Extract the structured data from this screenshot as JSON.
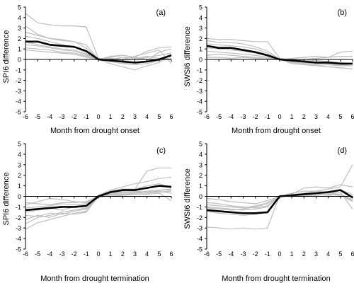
{
  "chart_data": [
    {
      "type": "line",
      "panel_label": "(a)",
      "ylabel": "SPI6 difference",
      "xlabel": "Month from drought onset",
      "x": [
        -6,
        -5,
        -4,
        -3,
        -2,
        -1,
        0,
        1,
        2,
        3,
        4,
        5,
        6
      ],
      "xlim": [
        -6,
        6
      ],
      "ylim": [
        -5,
        5
      ],
      "yticks": [
        -5,
        -4,
        -3,
        -2,
        -1,
        0,
        1,
        2,
        3,
        4,
        5
      ],
      "grid": false,
      "mean_series": [
        1.7,
        1.7,
        1.4,
        1.3,
        1.2,
        0.8,
        0.0,
        -0.1,
        -0.2,
        -0.3,
        -0.2,
        0.0,
        0.4
      ],
      "series": [
        {
          "values": [
            4.4,
            3.5,
            3.3,
            3.2,
            3.2,
            3.1,
            0.1,
            0.0,
            0.2,
            0.1,
            0.3,
            0.1,
            0.3
          ]
        },
        {
          "values": [
            3.2,
            2.4,
            2.0,
            1.9,
            1.7,
            1.4,
            0.0,
            -0.4,
            -0.7,
            -1.0,
            -0.6,
            -0.3,
            0.5
          ]
        },
        {
          "values": [
            2.6,
            2.3,
            2.0,
            1.8,
            1.7,
            1.1,
            0.0,
            -0.2,
            -0.4,
            -0.5,
            -0.1,
            0.7,
            1.0
          ]
        },
        {
          "values": [
            2.2,
            2.0,
            1.7,
            1.4,
            1.2,
            0.6,
            0.0,
            0.2,
            0.4,
            0.2,
            0.8,
            1.1,
            1.2
          ]
        },
        {
          "values": [
            1.7,
            1.4,
            1.2,
            1.0,
            0.9,
            0.5,
            0.0,
            0.3,
            0.4,
            0.2,
            0.0,
            0.0,
            0.1
          ]
        },
        {
          "values": [
            1.4,
            1.3,
            1.1,
            0.9,
            0.8,
            0.4,
            0.0,
            -0.1,
            -0.3,
            -0.5,
            -0.4,
            -0.1,
            0.0
          ]
        },
        {
          "values": [
            1.1,
            1.0,
            0.9,
            0.7,
            0.6,
            0.3,
            0.0,
            0.1,
            0.0,
            0.3,
            0.6,
            0.9,
            -0.4
          ]
        },
        {
          "values": [
            0.9,
            0.8,
            0.7,
            0.6,
            0.5,
            0.2,
            0.0,
            0.0,
            -0.1,
            0.0,
            0.2,
            0.4,
            0.6
          ]
        }
      ]
    },
    {
      "type": "line",
      "panel_label": "(b)",
      "ylabel": "SWSI6 difference",
      "xlabel": "Month from drought onset",
      "x": [
        -6,
        -5,
        -4,
        -3,
        -2,
        -1,
        0,
        1,
        2,
        3,
        4,
        5,
        6
      ],
      "xlim": [
        -6,
        6
      ],
      "ylim": [
        -5,
        5
      ],
      "yticks": [
        -5,
        -4,
        -3,
        -2,
        -1,
        0,
        1,
        2,
        3,
        4,
        5
      ],
      "grid": false,
      "mean_series": [
        1.3,
        1.1,
        1.1,
        0.9,
        0.7,
        0.4,
        0.0,
        -0.1,
        -0.2,
        -0.3,
        -0.3,
        -0.4,
        -0.4
      ],
      "series": [
        {
          "values": [
            2.0,
            1.9,
            1.9,
            1.8,
            1.7,
            1.7,
            0.1,
            0.0,
            -0.1,
            -0.1,
            -0.2,
            -0.3,
            -0.4
          ]
        },
        {
          "values": [
            1.8,
            1.6,
            1.6,
            1.5,
            1.2,
            0.8,
            0.0,
            -0.2,
            -0.3,
            -0.4,
            -0.5,
            -0.6,
            -0.6
          ]
        },
        {
          "values": [
            1.5,
            1.4,
            1.3,
            1.2,
            1.0,
            0.6,
            0.0,
            -0.3,
            -0.4,
            -0.5,
            -0.7,
            -0.8,
            -0.9
          ]
        },
        {
          "values": [
            1.1,
            1.0,
            0.9,
            0.8,
            0.6,
            0.3,
            0.0,
            -0.4,
            -0.5,
            -0.6,
            -0.7,
            -0.8,
            -0.9
          ]
        },
        {
          "values": [
            0.8,
            0.7,
            0.6,
            0.5,
            0.4,
            0.2,
            0.0,
            0.1,
            0.2,
            0.3,
            0.2,
            0.3,
            0.3
          ]
        },
        {
          "values": [
            0.4,
            0.5,
            0.4,
            0.3,
            0.2,
            0.1,
            0.0,
            -0.1,
            0.0,
            0.1,
            0.2,
            0.7,
            0.8
          ]
        },
        {
          "values": [
            0.2,
            0.2,
            0.1,
            0.2,
            0.1,
            0.0,
            0.0,
            -0.2,
            -0.3,
            -0.4,
            -0.4,
            -0.5,
            -0.6
          ]
        }
      ]
    },
    {
      "type": "line",
      "panel_label": "(c)",
      "ylabel": "SPI6 difference",
      "xlabel": "Month from drought termination",
      "x": [
        -6,
        -5,
        -4,
        -3,
        -2,
        -1,
        0,
        1,
        2,
        3,
        4,
        5,
        6
      ],
      "xlim": [
        -6,
        6
      ],
      "ylim": [
        -5,
        5
      ],
      "yticks": [
        -5,
        -4,
        -3,
        -2,
        -1,
        0,
        1,
        2,
        3,
        4,
        5
      ],
      "grid": false,
      "mean_series": [
        -1.3,
        -1.2,
        -1.1,
        -1.0,
        -1.0,
        -0.9,
        0.0,
        0.4,
        0.6,
        0.6,
        0.8,
        1.0,
        0.9
      ],
      "series": [
        {
          "values": [
            -0.6,
            -0.7,
            -0.8,
            -0.6,
            -0.6,
            -0.5,
            0.0,
            0.5,
            0.7,
            0.7,
            2.4,
            2.7,
            2.7
          ]
        },
        {
          "values": [
            -0.8,
            -0.5,
            -0.2,
            -0.3,
            -0.5,
            -0.6,
            0.1,
            0.6,
            0.9,
            1.2,
            1.4,
            1.7,
            1.8
          ]
        },
        {
          "values": [
            -1.1,
            -1.0,
            -0.9,
            -0.7,
            -0.8,
            -0.7,
            0.0,
            0.3,
            0.5,
            0.7,
            1.0,
            1.2,
            0.8
          ]
        },
        {
          "values": [
            -1.5,
            -1.3,
            -1.1,
            -1.3,
            -1.0,
            -0.9,
            0.0,
            0.2,
            0.3,
            0.4,
            0.5,
            0.6,
            0.7
          ]
        },
        {
          "values": [
            -1.8,
            -1.9,
            -1.6,
            -1.7,
            -1.4,
            -1.2,
            -0.1,
            0.1,
            0.2,
            0.3,
            0.3,
            0.4,
            0.5
          ]
        },
        {
          "values": [
            -2.2,
            -1.8,
            -2.0,
            -1.6,
            -1.7,
            -1.5,
            0.0,
            0.2,
            0.1,
            0.2,
            0.2,
            0.3,
            -0.4
          ]
        },
        {
          "values": [
            -2.6,
            -2.0,
            -1.8,
            -1.5,
            -1.3,
            -1.1,
            0.0,
            0.3,
            0.4,
            0.5,
            0.4,
            0.5,
            0.3
          ]
        },
        {
          "values": [
            -3.1,
            -2.5,
            -2.2,
            -1.9,
            -1.6,
            -1.4,
            0.0,
            0.0,
            0.1,
            0.3,
            0.5,
            0.6,
            0.6
          ]
        }
      ]
    },
    {
      "type": "line",
      "panel_label": "(d)",
      "ylabel": "SWSI6 difference",
      "xlabel": "Month from drought termination",
      "x": [
        -6,
        -5,
        -4,
        -3,
        -2,
        -1,
        0,
        1,
        2,
        3,
        4,
        5,
        6
      ],
      "xlim": [
        -6,
        6
      ],
      "ylim": [
        -5,
        5
      ],
      "yticks": [
        -5,
        -4,
        -3,
        -2,
        -1,
        0,
        1,
        2,
        3,
        4,
        5
      ],
      "grid": false,
      "mean_series": [
        -1.3,
        -1.4,
        -1.5,
        -1.6,
        -1.6,
        -1.5,
        0.0,
        0.1,
        0.2,
        0.3,
        0.4,
        0.6,
        -0.1
      ],
      "series": [
        {
          "values": [
            -0.6,
            -0.7,
            -0.9,
            -1.0,
            -1.1,
            -0.9,
            0.0,
            0.1,
            0.3,
            0.5,
            0.7,
            0.9,
            3.0
          ]
        },
        {
          "values": [
            -0.8,
            -0.9,
            -1.0,
            -1.1,
            -0.9,
            -0.6,
            0.0,
            0.2,
            0.8,
            0.9,
            0.8,
            1.1,
            0.9
          ]
        },
        {
          "values": [
            -1.0,
            -1.1,
            -1.2,
            -1.3,
            -1.2,
            -1.0,
            0.0,
            0.3,
            0.5,
            0.5,
            0.4,
            0.6,
            0.2
          ]
        },
        {
          "values": [
            -1.1,
            -1.2,
            -1.3,
            -1.2,
            -1.0,
            -0.7,
            0.0,
            0.1,
            0.2,
            0.3,
            0.3,
            0.2,
            -0.3
          ]
        },
        {
          "values": [
            -1.4,
            -1.6,
            -1.7,
            -1.8,
            -1.7,
            -1.5,
            0.0,
            0.0,
            0.1,
            0.1,
            0.2,
            0.1,
            -0.5
          ]
        },
        {
          "values": [
            -2.9,
            -3.0,
            -3.1,
            -3.0,
            -3.1,
            -3.0,
            0.1,
            0.0,
            0.1,
            0.2,
            0.3,
            0.4,
            -1.2
          ]
        },
        {
          "values": [
            -0.2,
            -0.3,
            -0.5,
            -0.6,
            -0.7,
            -0.4,
            0.0,
            0.2,
            0.3,
            0.2,
            0.1,
            0.2,
            -0.4
          ]
        }
      ]
    }
  ],
  "style": {
    "mean_color": "#000000",
    "member_color": "#bfbfbf",
    "axis_color": "#000000"
  }
}
